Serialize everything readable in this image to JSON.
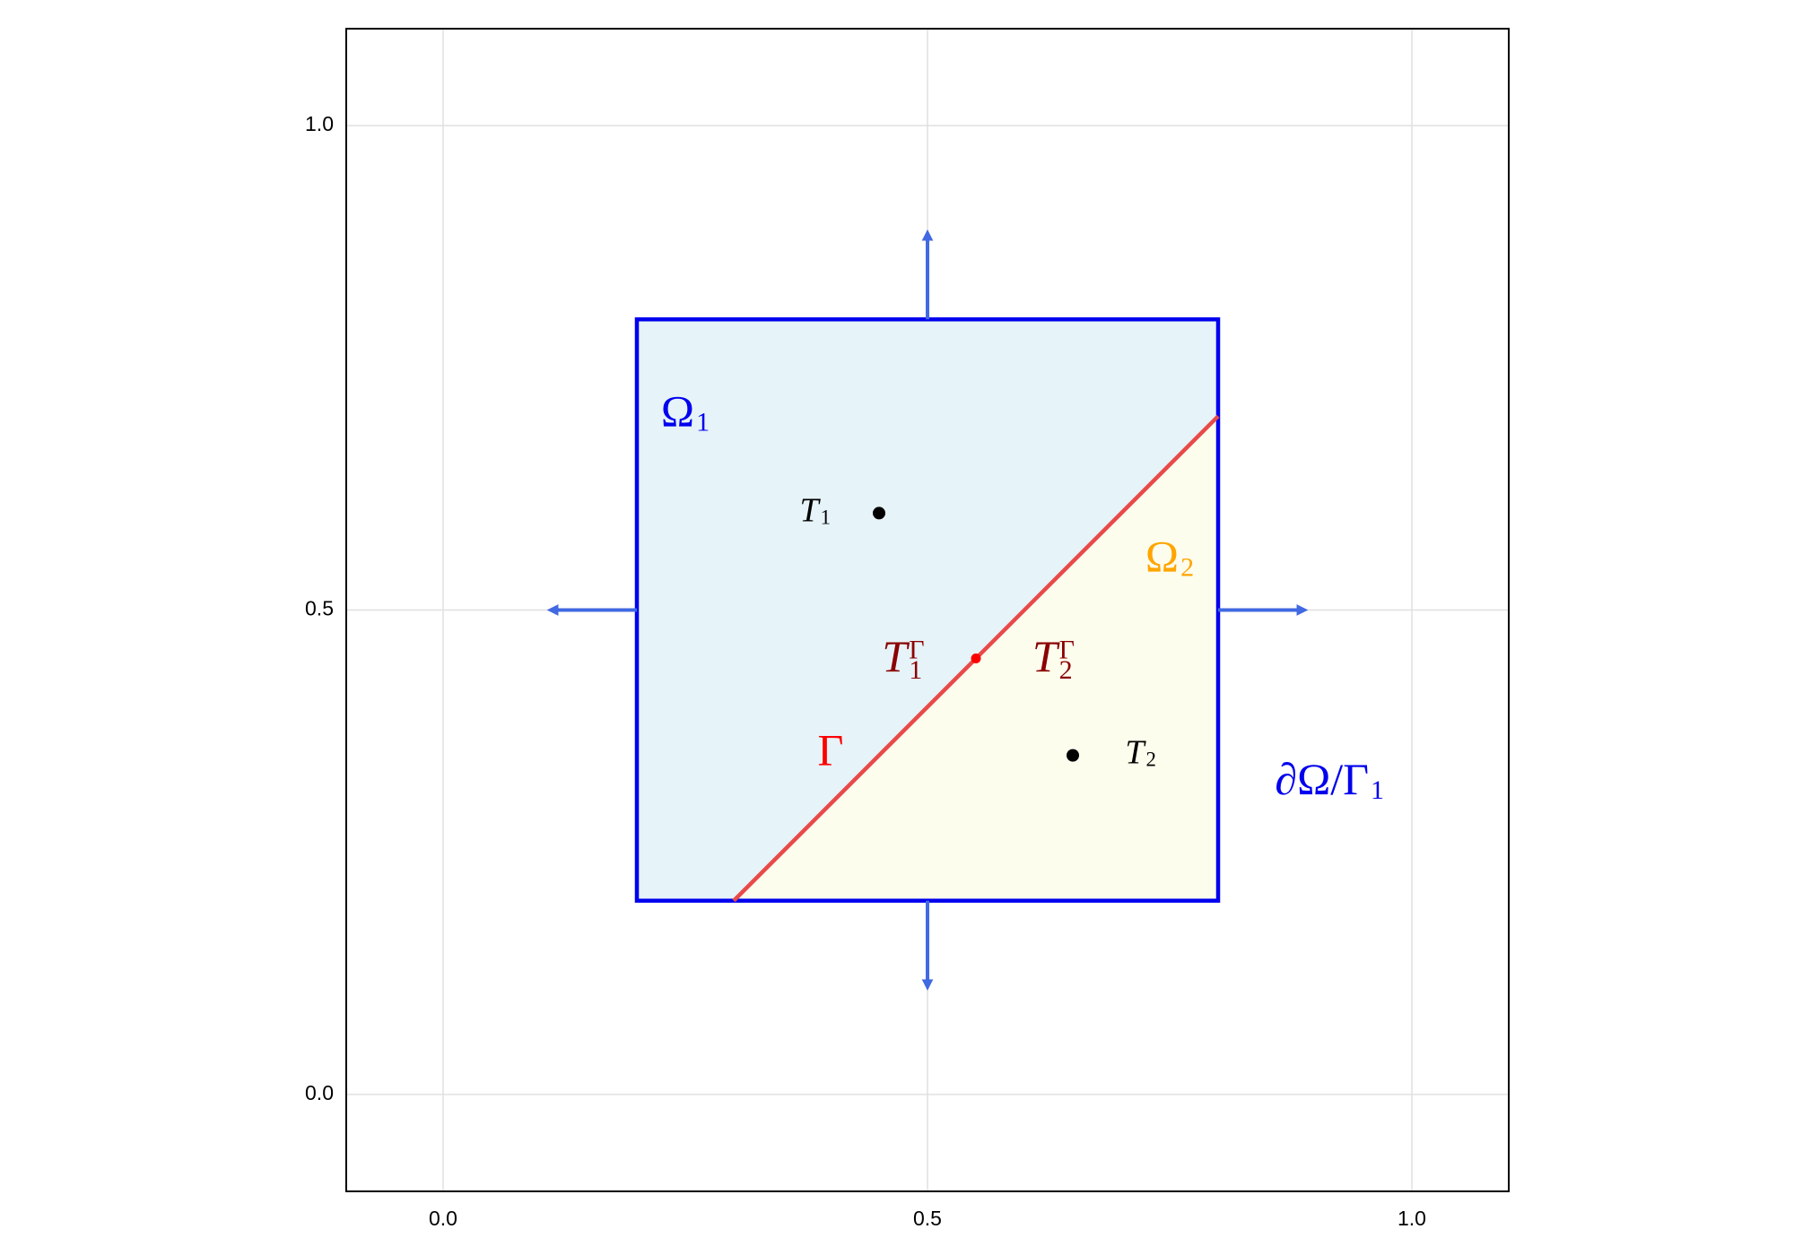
{
  "chart_data": {
    "type": "domain",
    "xlim": [
      -0.1,
      1.1
    ],
    "ylim": [
      -0.1,
      1.1
    ],
    "xticks": [
      {
        "value": 0,
        "label": "0.0"
      },
      0.5,
      {
        "value": 1,
        "label": "1.0"
      }
    ],
    "yticks": [
      {
        "value": 0,
        "label": "0.0"
      },
      0.5,
      {
        "value": 1,
        "label": "1.0"
      }
    ],
    "grid": true,
    "domain": {
      "x": [
        0.2,
        0.8
      ],
      "y": [
        0.2,
        0.8
      ],
      "color": "#0000ee",
      "fill": "#e6f3f8"
    },
    "subdomain": {
      "x": [
        0.3,
        0.8,
        0.8
      ],
      "y": [
        0.2,
        0.7,
        0.2
      ],
      "fill": "#fdfdee"
    },
    "interface": {
      "x": [
        0.3,
        0.8
      ],
      "y": [
        0.2,
        0.7
      ],
      "color": "#e84a4a"
    },
    "points": {
      "x": [
        0.45,
        0.65,
        0.55
      ],
      "y": [
        0.6,
        0.35,
        0.45
      ],
      "colors": [
        "#000000",
        "#000000",
        "#ff0000"
      ]
    },
    "arrows": [
      {
        "x": [
          0.5,
          0.5
        ],
        "y": [
          0.8,
          0.9
        ]
      },
      {
        "x": [
          0.2,
          0.1
        ],
        "y": [
          0.5,
          0.5
        ]
      },
      {
        "x": [
          0.8,
          0.9
        ],
        "y": [
          0.5,
          0.5
        ]
      },
      {
        "x": [
          0.5,
          0.5
        ],
        "y": [
          0.2,
          0.1
        ]
      }
    ],
    "arrow_color": "#4169e1",
    "annotations": [
      {
        "text": "Ω",
        "sub": "1",
        "x": 0.25,
        "y": 0.7,
        "color": "#0000ee"
      },
      {
        "text": "Ω",
        "sub": "2",
        "x": 0.75,
        "y": 0.55,
        "color": "#ffa500"
      },
      {
        "text": "T",
        "sub": "1",
        "sup": "Γ",
        "x": 0.475,
        "y": 0.447,
        "color": "#8b0000"
      },
      {
        "text": "T",
        "sub": "2",
        "sup": "Γ",
        "x": 0.63,
        "y": 0.447,
        "color": "#8b0000"
      },
      {
        "text": "Γ",
        "x": 0.4,
        "y": 0.35,
        "color": "#ff0000"
      },
      {
        "text": "∂Ω/Γ",
        "sub": "1",
        "x": 0.915,
        "y": 0.32,
        "color": "#0000ee"
      }
    ],
    "point_labels": [
      {
        "text": "T",
        "sub": "1",
        "x": 0.384,
        "y": 0.6,
        "color": "#000000"
      },
      {
        "text": "T",
        "sub": "2",
        "x": 0.72,
        "y": 0.35,
        "color": "#000000"
      }
    ]
  }
}
